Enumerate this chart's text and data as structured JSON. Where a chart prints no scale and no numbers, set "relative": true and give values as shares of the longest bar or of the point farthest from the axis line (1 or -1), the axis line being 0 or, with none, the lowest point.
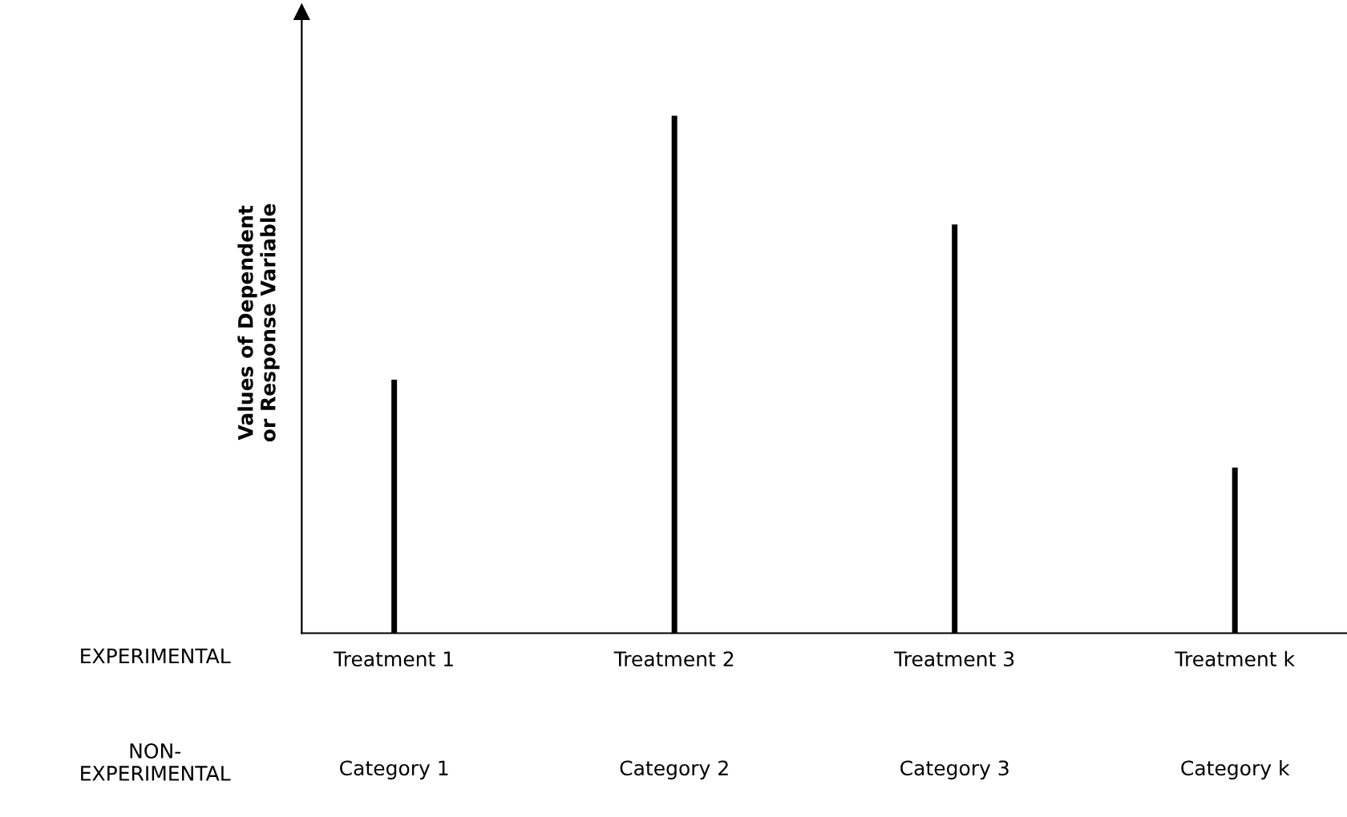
{
  "chart_data": {
    "type": "bar",
    "relative": true,
    "ylabel": "Values of Dependent\nor Response Variable",
    "categories": [
      "Treatment 1",
      "Treatment 2",
      "Treatment 3",
      "Treatment k"
    ],
    "values": [
      0.49,
      1,
      0.79,
      0.32
    ],
    "color": "#000000",
    "grid": false,
    "legend": false,
    "annotations": [
      "EXPERIMENTAL",
      "NON-\nEXPERIMENTAL",
      "Category 1",
      "Category 2",
      "Category 3",
      "Category k"
    ]
  }
}
